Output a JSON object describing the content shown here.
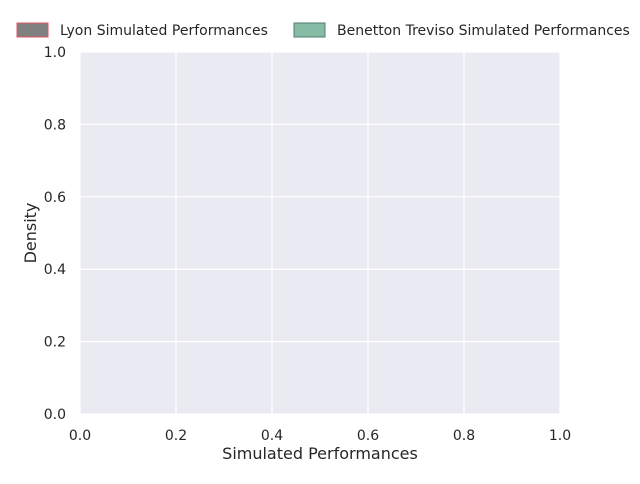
{
  "chart_data": {
    "type": "area",
    "title": "",
    "xlabel": "Simulated Performances",
    "ylabel": "Density",
    "xlim": [
      0.0,
      1.0
    ],
    "ylim": [
      0.0,
      1.0
    ],
    "xticks": [
      0.0,
      0.2,
      0.4,
      0.6,
      0.8,
      1.0
    ],
    "yticks": [
      0.0,
      0.2,
      0.4,
      0.6,
      0.8,
      1.0
    ],
    "xtick_labels": [
      "0.0",
      "0.2",
      "0.4",
      "0.6",
      "0.8",
      "1.0"
    ],
    "ytick_labels": [
      "0.0",
      "0.2",
      "0.4",
      "0.6",
      "0.8",
      "1.0"
    ],
    "grid": true,
    "legend_position": "top",
    "series": [
      {
        "name": "Lyon Simulated Performances",
        "color": "#808080",
        "edge_color": "#e05565",
        "x": [],
        "values": []
      },
      {
        "name": "Benetton Treviso Simulated Performances",
        "color": "#86bba6",
        "edge_color": "#4f7f6c",
        "x": [],
        "values": []
      }
    ],
    "colors": {
      "plot_background": "#eaeaf2",
      "gridline": "#ffffff",
      "text": "#262626"
    }
  }
}
